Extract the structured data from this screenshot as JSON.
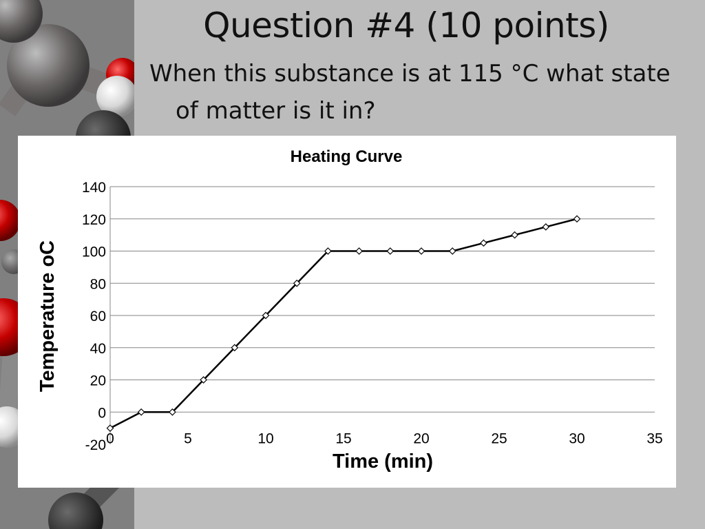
{
  "slide": {
    "title": "Question #4 (10 points)",
    "question": "When this substance is at 115 °C what state of matter is it in?"
  },
  "chart_data": {
    "type": "line",
    "title": "Heating Curve",
    "xlabel": "Time (min)",
    "ylabel": "Temperature oC",
    "xlim": [
      0,
      35
    ],
    "ylim": [
      -20,
      140
    ],
    "xticks": [
      0,
      5,
      10,
      15,
      20,
      25,
      30,
      35
    ],
    "yticks": [
      -20,
      0,
      20,
      40,
      60,
      80,
      100,
      120,
      140
    ],
    "grid": "horizontal",
    "legend": "none",
    "marker": "diamond",
    "line_color": "#000000",
    "series": [
      {
        "x": [
          0,
          2,
          4,
          6,
          8,
          10,
          12,
          14,
          16,
          18,
          20,
          22,
          24,
          26,
          28,
          30
        ],
        "y": [
          -10,
          0,
          0,
          20,
          40,
          60,
          80,
          100,
          100,
          100,
          100,
          100,
          105,
          110,
          115,
          120
        ]
      }
    ]
  }
}
